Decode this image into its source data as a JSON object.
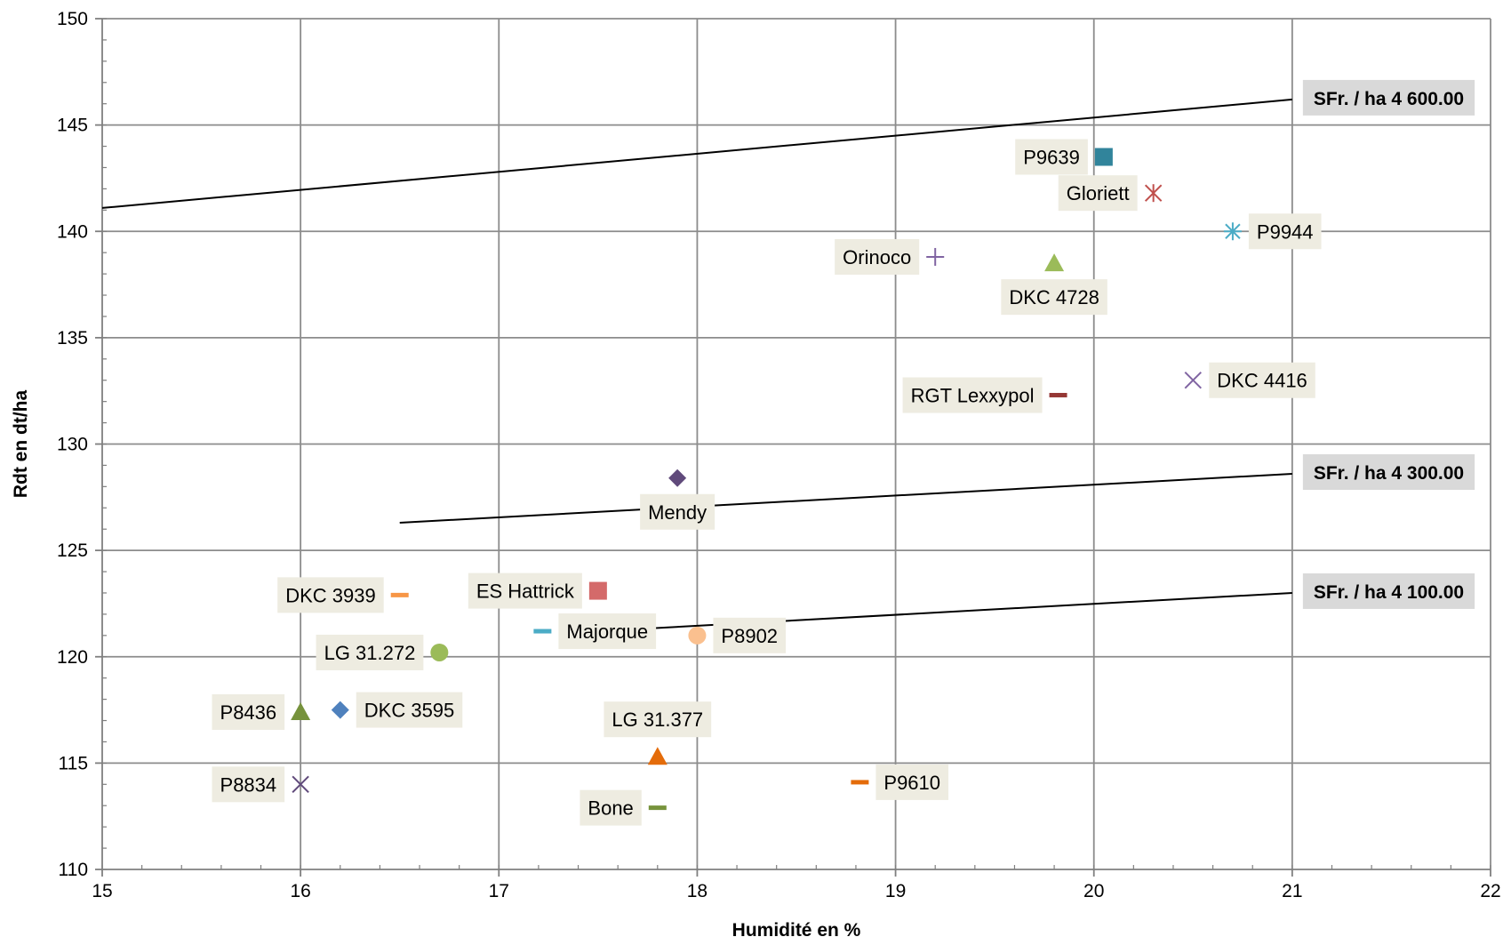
{
  "chart_data": {
    "type": "scatter",
    "xlabel": "Humidité en %",
    "ylabel": "Rdt en dt/ha",
    "xlim": [
      15,
      22
    ],
    "ylim": [
      110,
      150
    ],
    "x_ticks": [
      15,
      16,
      17,
      18,
      19,
      20,
      21,
      22
    ],
    "y_ticks": [
      110,
      115,
      120,
      125,
      130,
      135,
      140,
      145,
      150
    ],
    "grid": true,
    "legend": "none",
    "points": [
      {
        "label": "P9639",
        "x": 20.05,
        "y": 143.5,
        "marker": "square",
        "color": "#31849b",
        "label_side": "left"
      },
      {
        "label": "Gloriett",
        "x": 20.3,
        "y": 141.8,
        "marker": "star-x",
        "color": "#c0504d",
        "label_side": "left"
      },
      {
        "label": "P9944",
        "x": 20.7,
        "y": 140.0,
        "marker": "asterisk",
        "color": "#4bacc6",
        "label_side": "right"
      },
      {
        "label": "Orinoco",
        "x": 19.2,
        "y": 138.8,
        "marker": "plus",
        "color": "#8064a2",
        "label_side": "left"
      },
      {
        "label": "DKC 4728",
        "x": 19.8,
        "y": 138.5,
        "marker": "triangle",
        "color": "#9bbb59",
        "label_side": "below"
      },
      {
        "label": "RGT Lexxypol",
        "x": 19.82,
        "y": 132.3,
        "marker": "dash",
        "color": "#953735",
        "label_side": "left"
      },
      {
        "label": "DKC 4416",
        "x": 20.5,
        "y": 133.0,
        "marker": "x",
        "color": "#8064a2",
        "label_side": "right"
      },
      {
        "label": "Mendy",
        "x": 17.9,
        "y": 128.4,
        "marker": "diamond",
        "color": "#604a7b",
        "label_side": "below"
      },
      {
        "label": "DKC 3939",
        "x": 16.5,
        "y": 122.9,
        "marker": "dash",
        "color": "#f79646",
        "label_side": "left"
      },
      {
        "label": "ES Hattrick",
        "x": 17.5,
        "y": 123.1,
        "marker": "square",
        "color": "#d46a6a",
        "label_side": "left"
      },
      {
        "label": "Majorque",
        "x": 17.22,
        "y": 121.2,
        "marker": "dash",
        "color": "#4bacc6",
        "label_side": "right"
      },
      {
        "label": "P8902",
        "x": 18.0,
        "y": 121.0,
        "marker": "circle",
        "color": "#fac08f",
        "label_side": "right"
      },
      {
        "label": "LG 31.272",
        "x": 16.7,
        "y": 120.2,
        "marker": "circle",
        "color": "#9bbb59",
        "label_side": "left"
      },
      {
        "label": "P8436",
        "x": 16.0,
        "y": 117.4,
        "marker": "triangle",
        "color": "#76923c",
        "label_side": "left"
      },
      {
        "label": "DKC 3595",
        "x": 16.2,
        "y": 117.5,
        "marker": "diamond",
        "color": "#4f81bd",
        "label_side": "right"
      },
      {
        "label": "LG 31.377",
        "x": 17.8,
        "y": 115.3,
        "marker": "triangle",
        "color": "#e46c0a",
        "label_side": "above"
      },
      {
        "label": "P8834",
        "x": 16.0,
        "y": 114.0,
        "marker": "x",
        "color": "#604a7b",
        "label_side": "left"
      },
      {
        "label": "P9610",
        "x": 18.82,
        "y": 114.1,
        "marker": "dash",
        "color": "#e46c0a",
        "label_side": "right"
      },
      {
        "label": "Bone",
        "x": 17.8,
        "y": 112.9,
        "marker": "dash",
        "color": "#77933c",
        "label_side": "left"
      }
    ],
    "lines": [
      {
        "label": "SFr. / ha 4 600.00",
        "x": [
          15,
          21
        ],
        "y": [
          141.1,
          146.2
        ],
        "color": "#000000"
      },
      {
        "label": "SFr. / ha 4 300.00",
        "x": [
          16.5,
          21
        ],
        "y": [
          126.3,
          128.6
        ],
        "color": "#000000"
      },
      {
        "label": "SFr. / ha 4 100.00",
        "x": [
          17.5,
          21
        ],
        "y": [
          121.2,
          123.0
        ],
        "color": "#000000"
      }
    ]
  }
}
